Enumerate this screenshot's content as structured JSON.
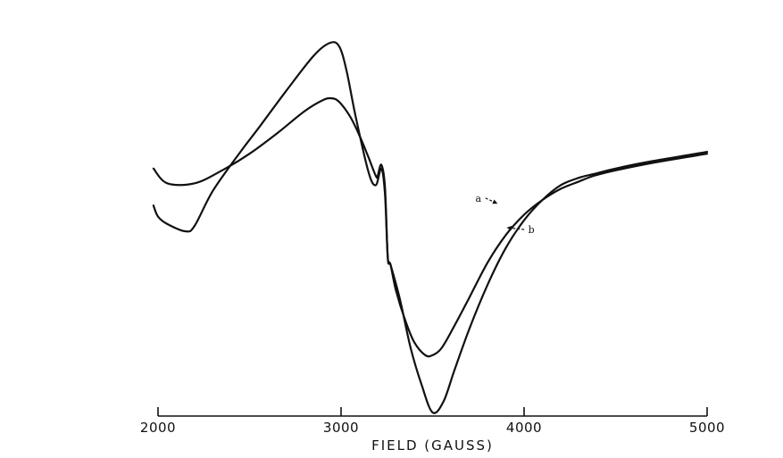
{
  "chart_data": {
    "type": "line",
    "title": "",
    "xlabel": "FIELD (GAUSS)",
    "ylabel": "",
    "xlim": [
      2000,
      5000
    ],
    "ylim": [
      0,
      1
    ],
    "xticks": [
      2000,
      3000,
      4000,
      5000
    ],
    "y_axis_visible": false,
    "grid": false,
    "legend": "none",
    "annotations": [
      {
        "text": "a",
        "x": 3750,
        "y": 0.58,
        "target_x": 3870,
        "target_y": 0.565,
        "series": "a"
      },
      {
        "text": "b",
        "x": 4040,
        "y": 0.495,
        "target_x": 3890,
        "target_y": 0.5,
        "series": "b"
      }
    ],
    "series": [
      {
        "name": "a",
        "x": [
          1975,
          2050,
          2200,
          2350,
          2500,
          2650,
          2800,
          2900,
          2950,
          2990,
          3050,
          3100,
          3150,
          3190,
          3200,
          3220,
          3240,
          3255,
          3270,
          3300,
          3350,
          3400,
          3460,
          3500,
          3550,
          3620,
          3700,
          3800,
          3900,
          4000,
          4100,
          4200,
          4300,
          4380,
          4500,
          4700,
          5000
        ],
        "y": [
          0.66,
          0.62,
          0.62,
          0.655,
          0.7,
          0.755,
          0.815,
          0.845,
          0.85,
          0.84,
          0.8,
          0.75,
          0.69,
          0.64,
          0.64,
          0.67,
          0.61,
          0.42,
          0.4,
          0.33,
          0.25,
          0.19,
          0.155,
          0.155,
          0.175,
          0.235,
          0.31,
          0.405,
          0.48,
          0.535,
          0.575,
          0.605,
          0.625,
          0.64,
          0.655,
          0.675,
          0.7
        ]
      },
      {
        "name": "b",
        "x": [
          1975,
          2000,
          2050,
          2150,
          2200,
          2300,
          2450,
          2550,
          2700,
          2850,
          2940,
          2990,
          3030,
          3080,
          3150,
          3190,
          3220,
          3240,
          3255,
          3270,
          3320,
          3380,
          3440,
          3500,
          3560,
          3620,
          3700,
          3800,
          3900,
          4000,
          4100,
          4200,
          4300,
          4380,
          4500,
          4700,
          5000
        ],
        "y": [
          0.56,
          0.53,
          0.51,
          0.49,
          0.505,
          0.6,
          0.705,
          0.77,
          0.87,
          0.965,
          1.0,
          0.99,
          0.925,
          0.8,
          0.65,
          0.615,
          0.66,
          0.59,
          0.42,
          0.4,
          0.31,
          0.175,
          0.075,
          0.0,
          0.03,
          0.115,
          0.225,
          0.345,
          0.445,
          0.52,
          0.575,
          0.615,
          0.635,
          0.645,
          0.66,
          0.68,
          0.705
        ]
      }
    ]
  }
}
